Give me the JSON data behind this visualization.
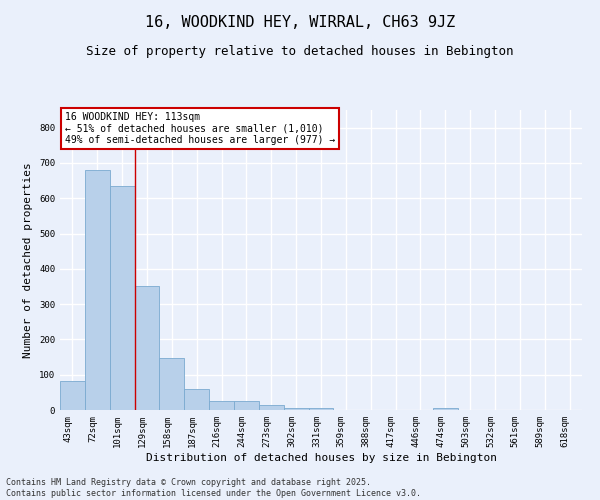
{
  "title": "16, WOODKIND HEY, WIRRAL, CH63 9JZ",
  "subtitle": "Size of property relative to detached houses in Bebington",
  "xlabel": "Distribution of detached houses by size in Bebington",
  "ylabel": "Number of detached properties",
  "categories": [
    "43sqm",
    "72sqm",
    "101sqm",
    "129sqm",
    "158sqm",
    "187sqm",
    "216sqm",
    "244sqm",
    "273sqm",
    "302sqm",
    "331sqm",
    "359sqm",
    "388sqm",
    "417sqm",
    "446sqm",
    "474sqm",
    "503sqm",
    "532sqm",
    "561sqm",
    "589sqm",
    "618sqm"
  ],
  "values": [
    83,
    680,
    635,
    350,
    148,
    60,
    25,
    25,
    15,
    7,
    5,
    0,
    0,
    0,
    0,
    7,
    0,
    0,
    0,
    0,
    0
  ],
  "bar_color": "#b8d0ea",
  "bar_edge_color": "#7aaad0",
  "background_color": "#eaf0fb",
  "grid_color": "#ffffff",
  "annotation_box_color": "#cc0000",
  "annotation_text": "16 WOODKIND HEY: 113sqm\n← 51% of detached houses are smaller (1,010)\n49% of semi-detached houses are larger (977) →",
  "red_line_x": 2.5,
  "ylim": [
    0,
    850
  ],
  "yticks": [
    0,
    100,
    200,
    300,
    400,
    500,
    600,
    700,
    800
  ],
  "copyright_text": "Contains HM Land Registry data © Crown copyright and database right 2025.\nContains public sector information licensed under the Open Government Licence v3.0.",
  "title_fontsize": 11,
  "subtitle_fontsize": 9,
  "annotation_fontsize": 7,
  "xlabel_fontsize": 8,
  "ylabel_fontsize": 8,
  "tick_fontsize": 6.5,
  "copyright_fontsize": 6
}
